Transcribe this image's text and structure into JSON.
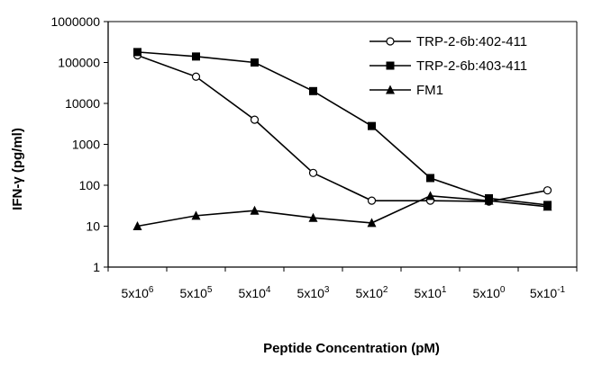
{
  "chart_data": {
    "type": "line",
    "y_scale": "log",
    "ylim": [
      1,
      1000000
    ],
    "y_ticks": [
      1,
      10,
      100,
      1000,
      10000,
      100000,
      1000000
    ],
    "y_tick_labels": [
      "1",
      "10",
      "100",
      "1000",
      "10000",
      "100000",
      "1000000"
    ],
    "categories": [
      {
        "base": "5x10",
        "exp": "6"
      },
      {
        "base": "5x10",
        "exp": "5"
      },
      {
        "base": "5x10",
        "exp": "4"
      },
      {
        "base": "5x10",
        "exp": "3"
      },
      {
        "base": "5x10",
        "exp": "2"
      },
      {
        "base": "5x10",
        "exp": "1"
      },
      {
        "base": "5x10",
        "exp": "0"
      },
      {
        "base": "5x10",
        "exp": "-1"
      }
    ],
    "xlabel": "Peptide Concentration (pM)",
    "ylabel": "IFN-γ (pg/ml)",
    "grid": false,
    "legend_position": "top-right",
    "series": [
      {
        "name": "TRP-2-6b:402-411",
        "marker": "open-circle",
        "values": [
          150000,
          45000,
          4000,
          200,
          42,
          42,
          40,
          75
        ]
      },
      {
        "name": "TRP-2-6b:403-411",
        "marker": "filled-square",
        "values": [
          180000,
          140000,
          100000,
          20000,
          2800,
          150,
          48,
          33
        ]
      },
      {
        "name": "FM1",
        "marker": "filled-triangle",
        "values": [
          10,
          18,
          24,
          16,
          12,
          55,
          42,
          30
        ]
      }
    ]
  }
}
